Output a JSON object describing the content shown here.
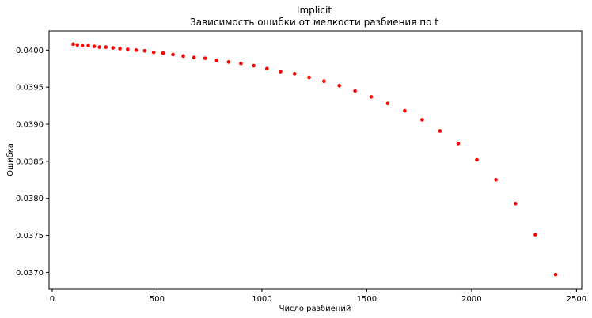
{
  "chart_data": {
    "type": "scatter",
    "title": "Implicit",
    "subtitle": "Зависимость ошибки от мелкости разбиения по t",
    "xlabel": "Число разбиений",
    "ylabel": "Ошибка",
    "xlim": [
      -15,
      2525
    ],
    "ylim": [
      0.03678,
      0.04026
    ],
    "xticks": [
      0,
      500,
      1000,
      1500,
      2000,
      2500
    ],
    "yticks": [
      0.037,
      0.0375,
      0.038,
      0.0385,
      0.039,
      0.0395,
      0.04
    ],
    "xtick_labels": [
      "0",
      "500",
      "1000",
      "1500",
      "2000",
      "2500"
    ],
    "ytick_labels": [
      "0.0370",
      "0.0375",
      "0.0380",
      "0.0385",
      "0.0390",
      "0.0395",
      "0.0400"
    ],
    "grid": false,
    "marker_color": "#ff0000",
    "series": [
      {
        "x": [
          100,
          120,
          144,
          172,
          200,
          225,
          256,
          290,
          323,
          360,
          400,
          441,
          484,
          529,
          576,
          625,
          676,
          729,
          784,
          841,
          900,
          961,
          1024,
          1089,
          1156,
          1225,
          1296,
          1369,
          1444,
          1521,
          1600,
          1681,
          1764,
          1849,
          1936,
          2025,
          2116,
          2209,
          2304,
          2401
        ],
        "y": [
          0.04008,
          0.04007,
          0.04006,
          0.04006,
          0.04005,
          0.04004,
          0.04004,
          0.04003,
          0.04002,
          0.04001,
          0.04,
          0.03999,
          0.03997,
          0.03996,
          0.03994,
          0.03992,
          0.0399,
          0.03989,
          0.03986,
          0.03984,
          0.03982,
          0.03979,
          0.03975,
          0.03971,
          0.03968,
          0.03963,
          0.03958,
          0.03952,
          0.03945,
          0.03937,
          0.03928,
          0.03918,
          0.03906,
          0.03891,
          0.03874,
          0.03852,
          0.03825,
          0.03793,
          0.03751,
          0.03697
        ]
      }
    ]
  }
}
